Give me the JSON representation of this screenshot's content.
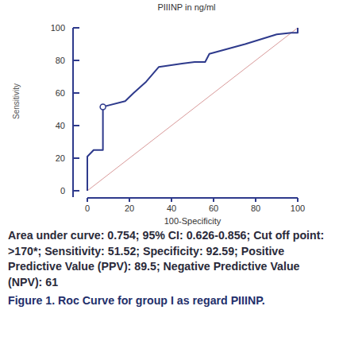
{
  "chart_data": {
    "type": "line",
    "title": "PIIINP in ng/ml",
    "x_label": "100-Specificity",
    "y_label": "Sensitivity",
    "x": [
      0,
      0,
      3,
      7.41,
      7.41,
      18,
      22,
      28,
      34,
      45,
      51,
      56,
      58,
      75,
      90,
      97,
      100,
      100
    ],
    "series": [
      {
        "color": "#2e3a8c",
        "line_style": "solid",
        "values": [
          0,
          21,
          25,
          25,
          51.52,
          55,
          60,
          67,
          76,
          78,
          79,
          79,
          84,
          90,
          96,
          97,
          97,
          100
        ]
      },
      {
        "color": "#d99a9a",
        "line_style": "solid",
        "x": [
          0,
          100
        ],
        "values": [
          0,
          100
        ]
      }
    ],
    "cutoff_point": {
      "x": 7.41,
      "y": 51.52,
      "marker": "circle"
    },
    "xlim": [
      0,
      100
    ],
    "ylim": [
      0,
      100
    ],
    "xticks": [
      0,
      20,
      40,
      60,
      80,
      100
    ],
    "yticks": [
      0,
      20,
      40,
      60,
      80,
      100
    ],
    "grid": false,
    "annotations": [
      "Area under curve: 0.754; 95% CI: 0.626-0.856; Cut off point: >170*; Sensitivity: 51.52; Specificity: 92.59; Positive Predictive Value (PPV): 89.5; Negative Predictive Value (NPV): 61",
      "Figure 1. Roc Curve for group I as regard PIIINP."
    ]
  }
}
